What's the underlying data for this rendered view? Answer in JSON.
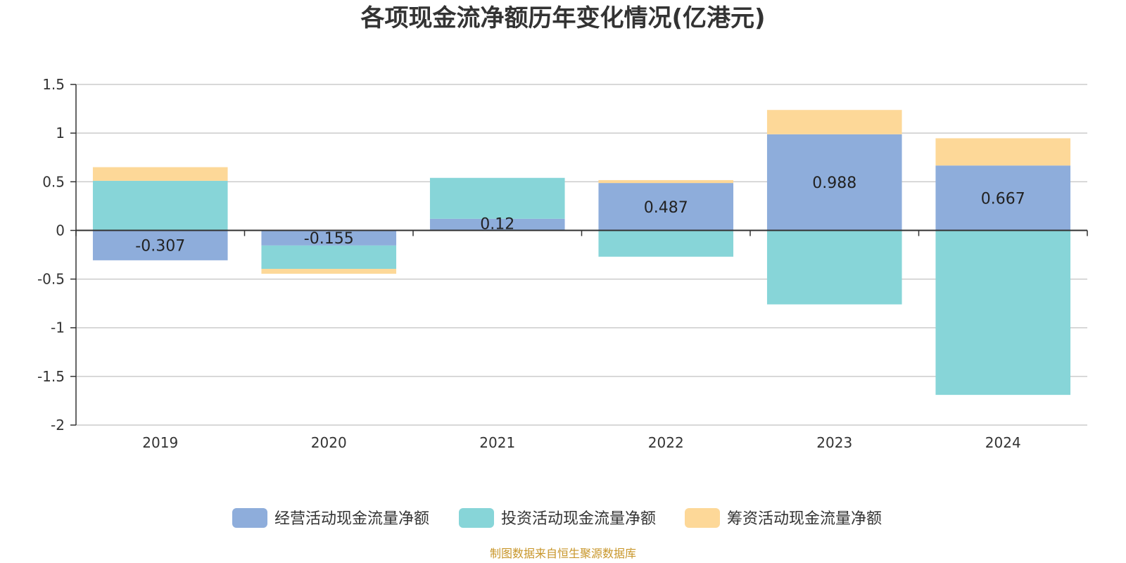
{
  "chart_data": {
    "type": "bar",
    "stacked": true,
    "title": "各项现金流净额历年变化情况(亿港元)",
    "categories": [
      "2019",
      "2020",
      "2021",
      "2022",
      "2023",
      "2024"
    ],
    "ylim": [
      -2,
      1.5
    ],
    "yticks": [
      "1.5",
      "1",
      "0.5",
      "0",
      "-0.5",
      "-1",
      "-1.5",
      "-2"
    ],
    "grid": true,
    "legend_position": "bottom",
    "series": [
      {
        "name": "经营活动现金流量净额",
        "color": "#8eaddb",
        "values": [
          -0.307,
          -0.155,
          0.12,
          0.487,
          0.988,
          0.667
        ],
        "labels": [
          "-0.307",
          "-0.155",
          "0.12",
          "0.487",
          "0.988",
          "0.667"
        ]
      },
      {
        "name": "投资活动现金流量净额",
        "color": "#87d5d8",
        "values": [
          0.51,
          -0.24,
          0.42,
          -0.27,
          -0.76,
          -1.69
        ]
      },
      {
        "name": "筹资活动现金流量净额",
        "color": "#fdd898",
        "values": [
          0.14,
          -0.05,
          0.0,
          0.03,
          0.25,
          0.28
        ]
      }
    ]
  },
  "source_note": "制图数据来自恒生聚源数据库"
}
